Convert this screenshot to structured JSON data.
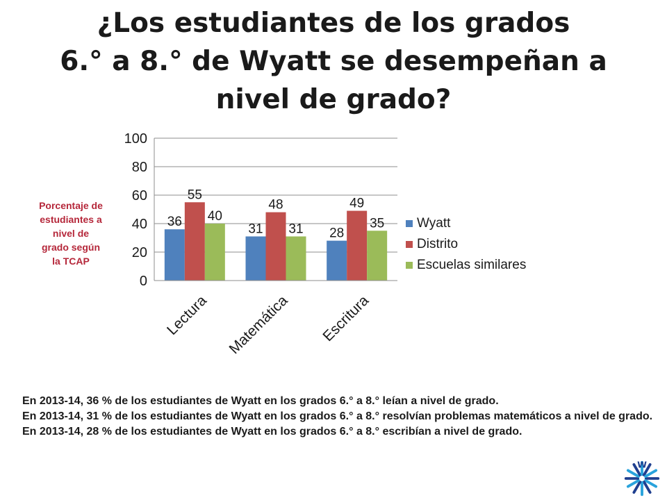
{
  "slide": {
    "title_line1": "¿Los estudiantes de los grados",
    "title_line2": "6.° a 8.° de Wyatt se desempeñan a",
    "title_line3": "nivel de grado?"
  },
  "chart_data": {
    "type": "bar",
    "title": "",
    "ylabel": "Porcentaje de estudiantes a nivel de grado según la TCAP",
    "ylabel_lines": [
      "Porcentaje de",
      "estudiantes a",
      "nivel de",
      "grado según",
      "la TCAP"
    ],
    "xlabel": "",
    "categories": [
      "Lectura",
      "Matemática",
      "Escritura"
    ],
    "series": [
      {
        "name": "Wyatt",
        "values": [
          36,
          31,
          28
        ],
        "color": "#4f81bd"
      },
      {
        "name": "Distrito",
        "values": [
          55,
          48,
          49
        ],
        "color": "#c0504d"
      },
      {
        "name": "Escuelas similares",
        "values": [
          40,
          31,
          35
        ],
        "color": "#9bbb59"
      }
    ],
    "ylim": [
      0,
      100
    ],
    "yticks": [
      "0",
      "20",
      "40",
      "60",
      "80",
      "100"
    ],
    "grid": true,
    "legend_position": "right",
    "data_labels": true
  },
  "notes": [
    "En 2013-14, 36 % de los estudiantes de Wyatt en los grados 6.° a 8.° leían a nivel de grado.",
    "En 2013-14, 31 % de los estudiantes de Wyatt en los grados 6.° a 8.° resolvían problemas matemáticos a nivel de grado.",
    "En 2013-14, 28 % de los estudiantes de Wyatt en los grados 6.° a 8.° escribían a nivel de grado."
  ],
  "logo": {
    "icon": "snowflake-logo-icon",
    "colors": [
      "#1f3f8f",
      "#29a3dc"
    ]
  }
}
